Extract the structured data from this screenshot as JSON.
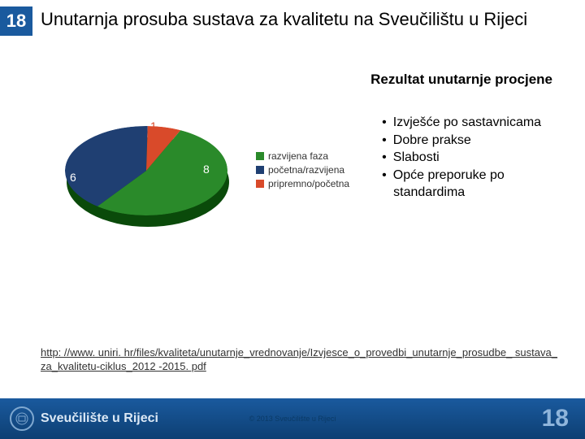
{
  "header": {
    "badge": "18",
    "title": "Unutarnja prosuba sustava za kvalitetu na Sveučilištu u Rijeci"
  },
  "subtitle": "Rezultat unutarnje procjene",
  "chart": {
    "type": "pie",
    "background_color": "#ffffff",
    "slices": [
      {
        "label": "razvijena faza",
        "value": 8,
        "color": "#2a8a2a",
        "legend_color": "#2a8a2a"
      },
      {
        "label": "početna/razvijena",
        "value": 6,
        "color": "#1f3f72",
        "legend_color": "#1f3f72"
      },
      {
        "label": "pripremno/početna",
        "value": 1,
        "color": "#d94a2a",
        "legend_color": "#d94a2a"
      }
    ],
    "data_label_color": "#ffffff",
    "data_label_fontsize": 14,
    "legend_fontsize": 12,
    "legend_text_color": "#333333",
    "depth_color": "#0a4a0a"
  },
  "bullets": [
    "Izvješće po sastavnicama",
    "Dobre prakse",
    "Slabosti",
    "Opće preporuke po standardima"
  ],
  "link": "http: //www. uniri. hr/files/kvaliteta/unutarnje_vrednovanje/Izvjesce_o_provedbi_unutarnje_prosudbe_ sustava_za_kvalitetu-ciklus_2012 -2015. pdf",
  "footer": {
    "org": "Sveučilište u Rijeci",
    "copyright": "© 2013 Sveučilište u Rijeci",
    "page": "18",
    "bg_top": "#1a5a9e",
    "bg_bottom": "#0d3f73",
    "text_color": "#dbe8f5",
    "page_color": "#8fb5db"
  }
}
